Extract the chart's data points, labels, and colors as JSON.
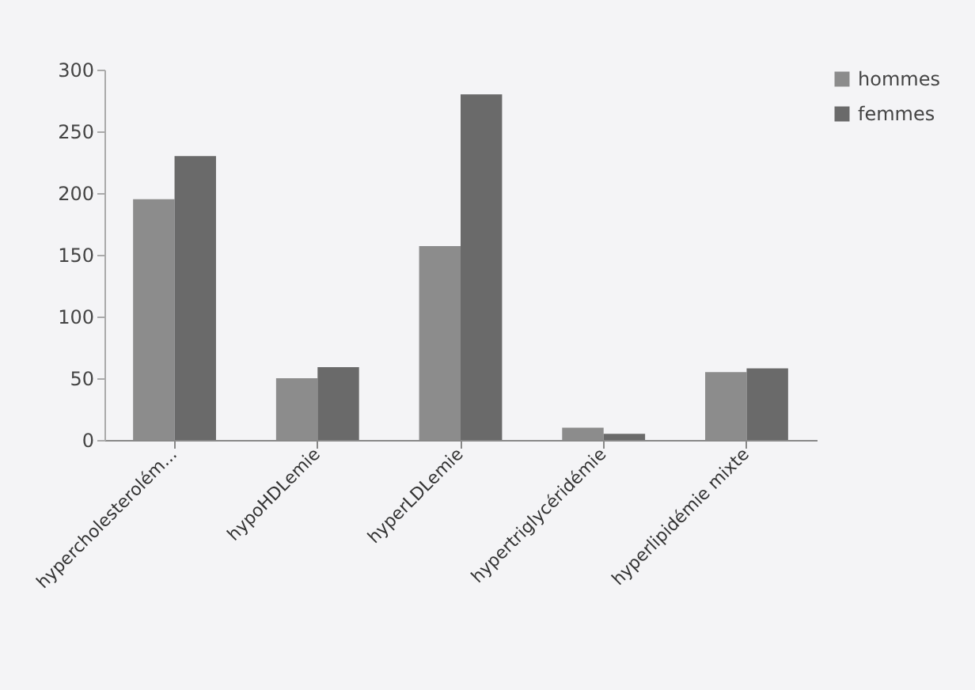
{
  "chart_data": {
    "type": "bar",
    "categories": [
      "hypercholesterolém...",
      "hypoHDLemie",
      "hyperLDLemie",
      "hypertriglycéridémie",
      "hyperlipidémie mixte"
    ],
    "series": [
      {
        "name": "hommes",
        "color": "#8c8c8c",
        "values": [
          195,
          50,
          157,
          10,
          55
        ]
      },
      {
        "name": "femmes",
        "color": "#6a6a6a",
        "values": [
          230,
          59,
          280,
          5,
          58
        ]
      }
    ],
    "ylim": [
      0,
      300
    ],
    "yticks": [
      0,
      50,
      100,
      150,
      200,
      250,
      300
    ],
    "grid": false,
    "legend": "right"
  }
}
